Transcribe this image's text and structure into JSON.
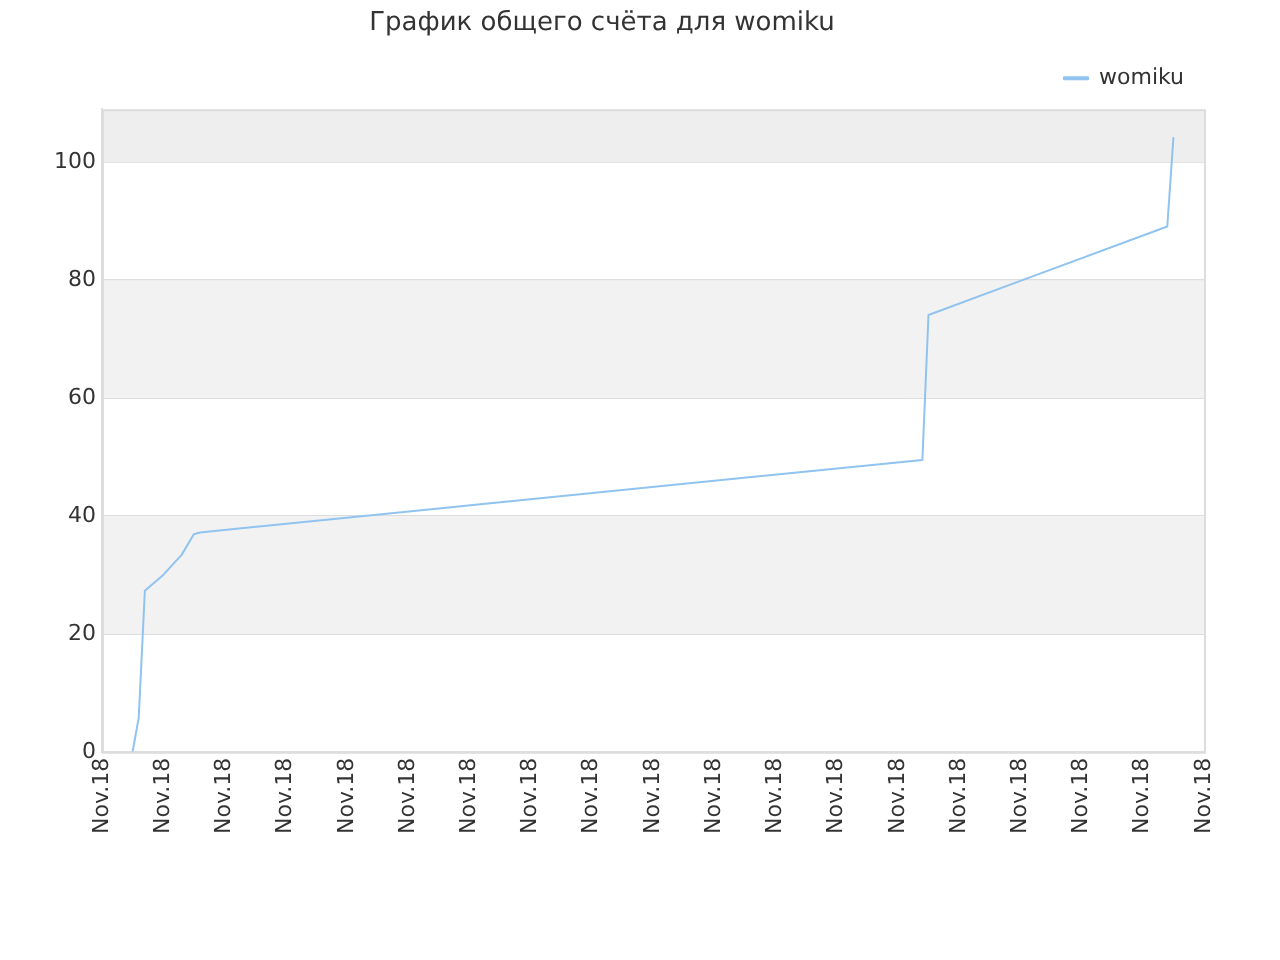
{
  "chart_data": {
    "type": "line",
    "title": "График общего счёта для womiku",
    "categories": [
      "Nov.18",
      null,
      null,
      null,
      null,
      null,
      null,
      null,
      null,
      null,
      "Nov.18",
      null,
      null,
      null,
      null,
      null,
      null,
      null,
      null,
      null,
      "Nov.18",
      null,
      null,
      null,
      null,
      null,
      null,
      null,
      null,
      null,
      "Nov.18",
      null,
      null,
      null,
      null,
      null,
      null,
      null,
      null,
      null,
      "Nov.18",
      null,
      null,
      null,
      null,
      null,
      null,
      null,
      null,
      null,
      "Nov.18",
      null,
      null,
      null,
      null,
      null,
      null,
      null,
      null,
      null,
      "Nov.18",
      null,
      null,
      null,
      null,
      null,
      null,
      null,
      null,
      null,
      "Nov.18",
      null,
      null,
      null,
      null,
      null,
      null,
      null,
      null,
      null,
      "Nov.18",
      null,
      null,
      null,
      null,
      null,
      null,
      null,
      null,
      null,
      "Nov.18",
      null,
      null,
      null,
      null,
      null,
      null,
      null,
      null,
      null,
      "Nov.18",
      null,
      null,
      null,
      null,
      null,
      null,
      null,
      null,
      null,
      "Nov.18",
      null,
      null,
      null,
      null,
      null,
      null,
      null,
      null,
      null,
      "Nov.18",
      null,
      null,
      null,
      null,
      null,
      null,
      null,
      null,
      null,
      "Nov.18",
      null,
      null,
      null,
      null,
      null,
      null,
      null,
      null,
      null,
      "Nov.18",
      null,
      null,
      null,
      null,
      null,
      null,
      null,
      null,
      null,
      "Nov.18",
      null,
      null,
      null,
      null,
      null,
      null,
      null,
      null,
      null,
      "Nov.18",
      null,
      null,
      null,
      null,
      null,
      null,
      null,
      null,
      null,
      "Nov.18",
      null,
      null,
      null,
      null,
      null,
      null,
      null,
      null,
      null,
      "Nov.18"
    ],
    "ylim": [
      0,
      109
    ],
    "yticks": [
      0,
      20,
      40,
      60,
      80,
      100
    ],
    "grid": "y",
    "legend": "top right",
    "marker": "none",
    "line_style": "solid",
    "bands": [
      {
        "axis": "y",
        "from": 20,
        "to": 40,
        "color": "#f2f2f2"
      },
      {
        "axis": "y",
        "from": 60,
        "to": 80,
        "color": "#f2f2f2"
      },
      {
        "axis": "y",
        "from": 100,
        "to": 109,
        "color": "#eeeeee"
      }
    ],
    "series": [
      {
        "name": "womiku",
        "color": "#90c3f0",
        "values": [
          null,
          null,
          null,
          null,
          null,
          0,
          5.8,
          27.3,
          null,
          null,
          30,
          null,
          null,
          33.4,
          null,
          36.9,
          37.2,
          null,
          null,
          null,
          null,
          null,
          null,
          null,
          null,
          null,
          null,
          null,
          null,
          null,
          null,
          null,
          null,
          null,
          null,
          null,
          null,
          null,
          null,
          null,
          null,
          null,
          null,
          null,
          null,
          null,
          null,
          null,
          null,
          null,
          null,
          null,
          null,
          null,
          null,
          null,
          null,
          null,
          null,
          null,
          null,
          null,
          null,
          null,
          null,
          null,
          null,
          null,
          null,
          null,
          null,
          null,
          null,
          null,
          null,
          null,
          null,
          null,
          null,
          null,
          null,
          null,
          null,
          null,
          null,
          null,
          null,
          null,
          null,
          null,
          null,
          null,
          null,
          null,
          null,
          null,
          null,
          null,
          null,
          null,
          null,
          null,
          null,
          null,
          null,
          null,
          null,
          null,
          null,
          null,
          null,
          null,
          null,
          null,
          null,
          null,
          null,
          null,
          null,
          null,
          null,
          null,
          null,
          null,
          null,
          null,
          null,
          null,
          null,
          null,
          null,
          null,
          null,
          null,
          49.5,
          74.1,
          null,
          null,
          null,
          null,
          null,
          null,
          null,
          null,
          null,
          null,
          null,
          null,
          null,
          null,
          null,
          null,
          null,
          null,
          null,
          null,
          null,
          null,
          null,
          null,
          null,
          null,
          null,
          null,
          null,
          null,
          null,
          null,
          null,
          null,
          null,
          null,
          null,
          null,
          89.1,
          104.1,
          null,
          null,
          null,
          null,
          null
        ]
      }
    ]
  }
}
